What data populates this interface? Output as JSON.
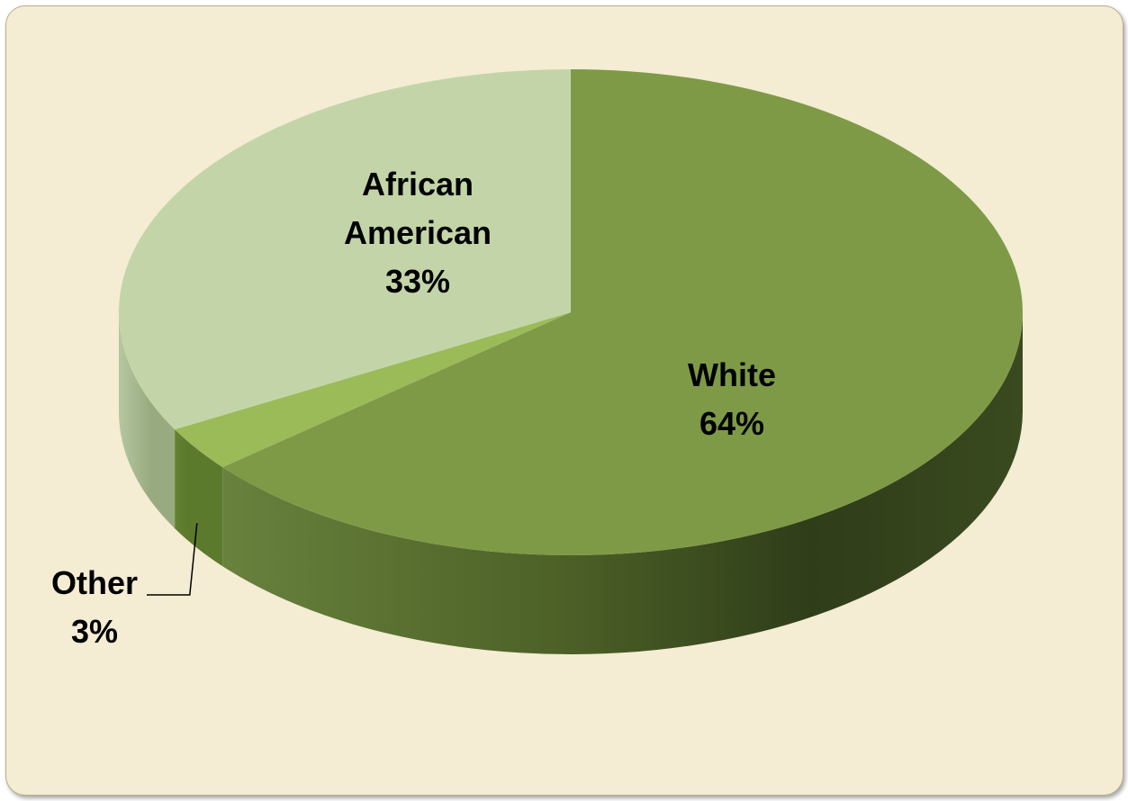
{
  "chart_data": {
    "type": "pie",
    "style": "3d",
    "title": "",
    "legend": "none",
    "slices": [
      {
        "label_lines": [
          "White"
        ],
        "value": 64,
        "value_label": "64%",
        "color": "#7e9a47"
      },
      {
        "label_lines": [
          "Other"
        ],
        "value": 3,
        "value_label": "3%",
        "color": "#9bbb59"
      },
      {
        "label_lines": [
          "African",
          "American"
        ],
        "value": 33,
        "value_label": "33%",
        "color": "#c3d5a8"
      }
    ]
  },
  "colors": {
    "background": "#f4ecd3",
    "border": "#b7ae8e",
    "white_side_dark": "#2e3b1a",
    "white_side_mid": "#5f7633"
  }
}
